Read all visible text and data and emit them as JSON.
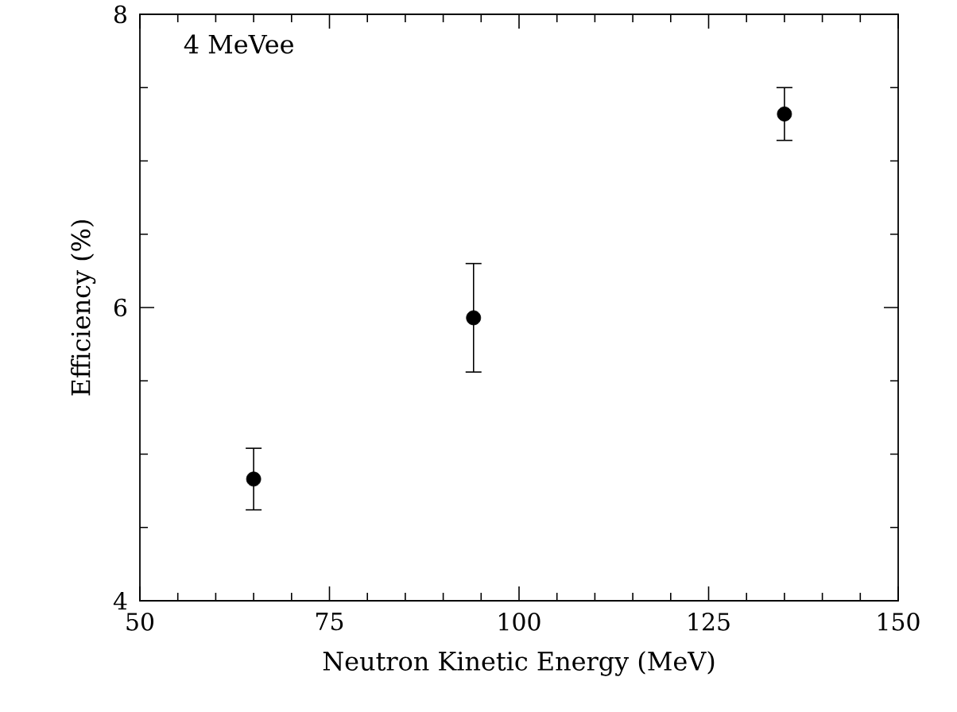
{
  "chart_data": {
    "type": "scatter",
    "xlabel": "Neutron Kinetic Energy (MeV)",
    "ylabel": "Efficiency (%)",
    "annotations": [
      "4 MeVee"
    ],
    "x": [
      65,
      94,
      135
    ],
    "series": [
      {
        "color": "#000000",
        "values": [
          4.83,
          5.93,
          7.32
        ],
        "errors": [
          0.21,
          0.37,
          0.18
        ]
      }
    ],
    "marker": "circle",
    "grid": false,
    "xlim": [
      50,
      150
    ],
    "xticks": [
      50,
      75,
      100,
      125,
      150
    ],
    "ylim": [
      4,
      8
    ],
    "yticks": [
      4,
      6,
      8
    ]
  }
}
